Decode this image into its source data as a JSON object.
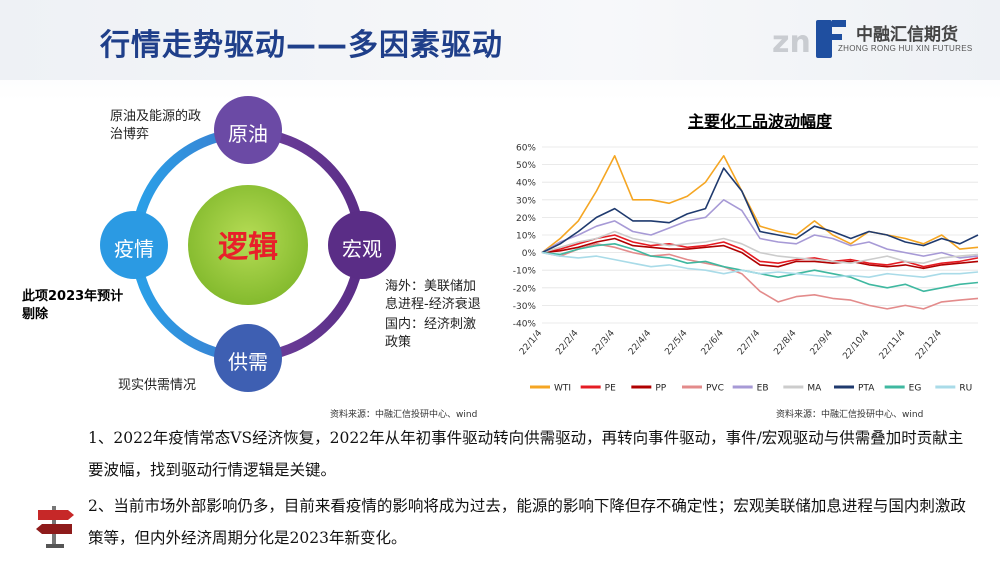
{
  "header": {
    "title": "行情走势驱动——多因素驱动"
  },
  "logo": {
    "name_cn": "中融汇信期货",
    "name_en": "ZHONG RONG HUI XIN FUTURES"
  },
  "diagram": {
    "center": "逻辑",
    "nodes": {
      "top": "原油",
      "right": "宏观",
      "bottom": "供需",
      "left": "疫情"
    },
    "notes": {
      "top": "原油及能源的政\n治博弈",
      "right_1": "海外：美联储加\n息进程-经济衰退",
      "right_2": "国内：经济刺激\n政策",
      "left": "此项2023年预计\n剔除",
      "bottom": "现实供需情况"
    },
    "source": "资料来源：中融汇信投研中心、wind"
  },
  "chart": {
    "source": "资料来源：中融汇信投研中心、wind"
  },
  "chart_data": {
    "type": "line",
    "title": "主要化工品波动幅度",
    "x": [
      "22/1/4",
      "22/1/18",
      "22/2/4",
      "22/2/18",
      "22/3/4",
      "22/3/18",
      "22/4/4",
      "22/4/18",
      "22/5/4",
      "22/5/18",
      "22/6/4",
      "22/6/18",
      "22/7/4",
      "22/7/18",
      "22/8/4",
      "22/8/18",
      "22/9/4",
      "22/9/18",
      "22/10/4",
      "22/10/18",
      "22/11/4",
      "22/11/18",
      "22/12/4",
      "22/12/18",
      "22/12/31"
    ],
    "xticks": [
      "22/1/4",
      "22/2/4",
      "22/3/4",
      "22/4/4",
      "22/5/4",
      "22/6/4",
      "22/7/4",
      "22/8/4",
      "22/9/4",
      "22/10/4",
      "22/11/4",
      "22/12/4"
    ],
    "yticks": [
      "60%",
      "50%",
      "40%",
      "30%",
      "20%",
      "10%",
      "0%",
      "-10%",
      "-20%",
      "-30%",
      "-40%"
    ],
    "ylim": [
      -40,
      60
    ],
    "xlabel": "",
    "ylabel": "",
    "legend_position": "bottom",
    "series": [
      {
        "name": "WTI",
        "color": "#f5a623",
        "values": [
          0,
          8,
          18,
          35,
          55,
          30,
          30,
          28,
          32,
          40,
          55,
          35,
          15,
          12,
          10,
          18,
          10,
          5,
          12,
          10,
          8,
          5,
          10,
          2,
          3
        ]
      },
      {
        "name": "PE",
        "color": "#e51c23",
        "values": [
          0,
          2,
          5,
          8,
          10,
          6,
          4,
          5,
          3,
          4,
          6,
          2,
          -5,
          -6,
          -4,
          -3,
          -5,
          -4,
          -6,
          -7,
          -5,
          -8,
          -6,
          -5,
          -3
        ]
      },
      {
        "name": "PP",
        "color": "#b00000",
        "values": [
          0,
          1,
          3,
          6,
          8,
          4,
          3,
          2,
          2,
          3,
          4,
          0,
          -7,
          -8,
          -5,
          -5,
          -6,
          -5,
          -7,
          -8,
          -7,
          -9,
          -7,
          -6,
          -5
        ]
      },
      {
        "name": "PVC",
        "color": "#e38b8b",
        "values": [
          0,
          -2,
          2,
          5,
          3,
          0,
          -2,
          -1,
          -4,
          -6,
          -8,
          -12,
          -22,
          -28,
          -25,
          -24,
          -26,
          -27,
          -30,
          -32,
          -30,
          -32,
          -28,
          -27,
          -26
        ]
      },
      {
        "name": "EB",
        "color": "#a79ad6",
        "values": [
          0,
          6,
          10,
          15,
          18,
          12,
          10,
          14,
          18,
          20,
          30,
          24,
          8,
          6,
          5,
          10,
          8,
          4,
          6,
          2,
          0,
          -2,
          0,
          -3,
          -2
        ]
      },
      {
        "name": "MA",
        "color": "#cccccc",
        "values": [
          0,
          3,
          6,
          8,
          12,
          8,
          6,
          4,
          5,
          6,
          8,
          5,
          0,
          -2,
          -3,
          -4,
          -5,
          -6,
          -4,
          -2,
          -5,
          -6,
          -3,
          -2,
          -1
        ]
      },
      {
        "name": "PTA",
        "color": "#1f3a6e",
        "values": [
          0,
          5,
          12,
          20,
          25,
          18,
          18,
          17,
          22,
          25,
          48,
          35,
          12,
          10,
          8,
          15,
          12,
          8,
          12,
          10,
          6,
          4,
          8,
          5,
          10
        ]
      },
      {
        "name": "EG",
        "color": "#3fb8a0",
        "values": [
          0,
          -1,
          2,
          4,
          5,
          2,
          -2,
          -3,
          -6,
          -5,
          -8,
          -10,
          -12,
          -14,
          -12,
          -10,
          -12,
          -14,
          -18,
          -20,
          -18,
          -22,
          -20,
          -18,
          -17
        ]
      },
      {
        "name": "RU",
        "color": "#a9dbe8",
        "values": [
          0,
          -2,
          -3,
          -2,
          -4,
          -6,
          -8,
          -7,
          -9,
          -10,
          -12,
          -10,
          -12,
          -11,
          -12,
          -13,
          -14,
          -13,
          -14,
          -12,
          -13,
          -14,
          -12,
          -12,
          -11
        ]
      }
    ]
  },
  "body": {
    "p1": "1、2022年疫情常态VS经济恢复，2022年从年初事件驱动转向供需驱动，再转向事件驱动，事件/宏观驱动与供需叠加时贡献主要波幅，找到驱动行情逻辑是关键。",
    "p2": "2、当前市场外部影响仍多，目前来看疫情的影响将成为过去，能源的影响下降但存不确定性；宏观美联储加息进程与国内刺激政策等，但内外经济周期分化是2023年新变化。"
  },
  "colors": {
    "title": "#1f3f8a",
    "ring_left": "#3b8ed8",
    "ring_right": "#6b3d99",
    "center_circle": "#9ccc3a",
    "center_text": "#e8202a"
  }
}
